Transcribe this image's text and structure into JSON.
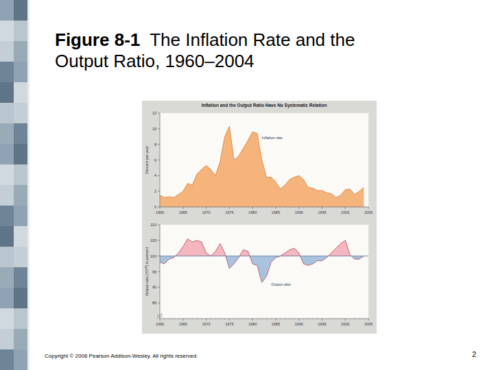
{
  "slide": {
    "title": "Figure 8-1  The Inflation Rate and the Output Ratio, 1960–2004",
    "copyright": "Copyright © 2006 Pearson Addison-Wesley. All rights reserved.",
    "page": "2"
  },
  "chart_data": [
    {
      "type": "area",
      "title": "Inflation and the Output Ratio Have No Systematic Relation",
      "y_label": "Percent per year",
      "x": [
        1960,
        1961,
        1962,
        1963,
        1964,
        1965,
        1966,
        1967,
        1968,
        1969,
        1970,
        1971,
        1972,
        1973,
        1974,
        1975,
        1976,
        1977,
        1978,
        1979,
        1980,
        1981,
        1982,
        1983,
        1984,
        1985,
        1986,
        1987,
        1988,
        1989,
        1990,
        1991,
        1992,
        1993,
        1994,
        1995,
        1996,
        1997,
        1998,
        1999,
        2000,
        2001,
        2002,
        2003,
        2004
      ],
      "series": [
        {
          "color": "#f5b47c",
          "values": [
            1.5,
            1.2,
            1.3,
            1.2,
            1.6,
            2.0,
            3.0,
            2.8,
            4.2,
            4.8,
            5.3,
            4.8,
            4.0,
            5.8,
            9.0,
            10.3,
            6.0,
            6.5,
            7.5,
            8.5,
            9.6,
            9.4,
            6.0,
            3.8,
            3.8,
            3.2,
            2.3,
            2.8,
            3.5,
            3.8,
            4.0,
            3.5,
            2.5,
            2.4,
            2.1,
            2.1,
            1.8,
            1.7,
            1.2,
            1.5,
            2.2,
            2.3,
            1.6,
            2.0,
            2.5
          ]
        }
      ],
      "xlim": [
        1960,
        2005
      ],
      "xticks": [
        1960,
        1965,
        1970,
        1975,
        1980,
        1985,
        1990,
        1995,
        2000,
        2005
      ],
      "ylim": [
        0,
        12
      ],
      "yticks": [
        0,
        2,
        4,
        6,
        8,
        10,
        12
      ],
      "annotations": [
        {
          "text": "Inflation rate",
          "x": 1982,
          "y": 8.7
        }
      ]
    },
    {
      "type": "area",
      "y_label": "Output ratio (Y/Yᴺ) in percent",
      "x": [
        1960,
        1961,
        1962,
        1963,
        1964,
        1965,
        1966,
        1967,
        1968,
        1969,
        1970,
        1971,
        1972,
        1973,
        1974,
        1975,
        1976,
        1977,
        1978,
        1979,
        1980,
        1981,
        1982,
        1983,
        1984,
        1985,
        1986,
        1987,
        1988,
        1989,
        1990,
        1991,
        1992,
        1993,
        1994,
        1995,
        1996,
        1997,
        1998,
        1999,
        2000,
        2001,
        2002,
        2003,
        2004
      ],
      "series": [
        {
          "color": "#f4b6bf",
          "values": [
            98,
            97.5,
            99,
            99.5,
            101,
            103,
            105.5,
            104.5,
            105,
            104.5,
            101,
            100,
            101.5,
            104,
            101,
            96,
            97.5,
            99.5,
            102,
            101.5,
            97.5,
            97,
            91.5,
            93.5,
            98,
            99.5,
            100,
            101,
            102,
            102.5,
            101,
            97.5,
            97,
            97.5,
            98.5,
            98.5,
            99.5,
            101,
            102.5,
            104,
            105,
            100.5,
            99,
            99,
            100
          ]
        }
      ],
      "reference_line": 100,
      "xlim": [
        1960,
        2005
      ],
      "xticks": [
        1960,
        1965,
        1970,
        1975,
        1980,
        1985,
        1990,
        1995,
        2000,
        2005
      ],
      "ylim": [
        80,
        110
      ],
      "yticks": [
        85,
        90,
        95,
        100,
        105,
        110
      ],
      "annotations": [
        {
          "text": "Output ratio",
          "x": 1984,
          "y": 90.5
        }
      ]
    }
  ]
}
